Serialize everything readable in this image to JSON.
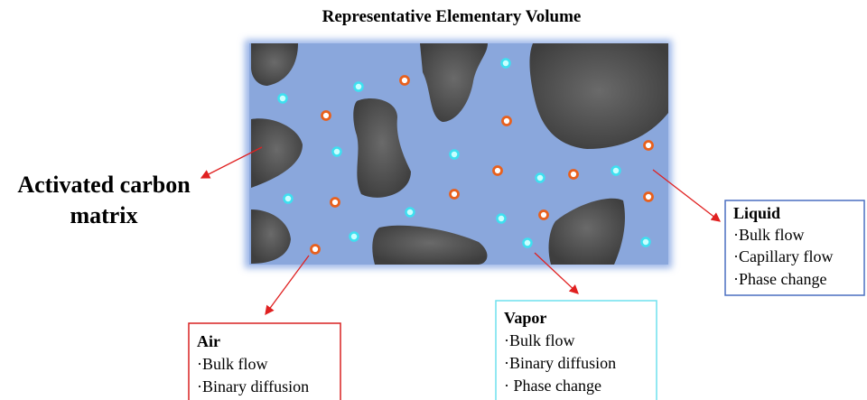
{
  "title": "Representative Elementary Volume",
  "matrix_label": [
    "Activated carbon",
    "matrix"
  ],
  "boxes": [
    {
      "title": "Liquid",
      "items": [
        "·Bulk flow",
        "·Capillary flow",
        "·Phase change"
      ]
    },
    {
      "title": "Air",
      "items": [
        "·Bulk flow",
        "·Binary diffusion"
      ]
    },
    {
      "title": "Vapor",
      "items": [
        "·Bulk flow",
        "·Binary diffusion",
        "· Phase change"
      ]
    }
  ]
}
